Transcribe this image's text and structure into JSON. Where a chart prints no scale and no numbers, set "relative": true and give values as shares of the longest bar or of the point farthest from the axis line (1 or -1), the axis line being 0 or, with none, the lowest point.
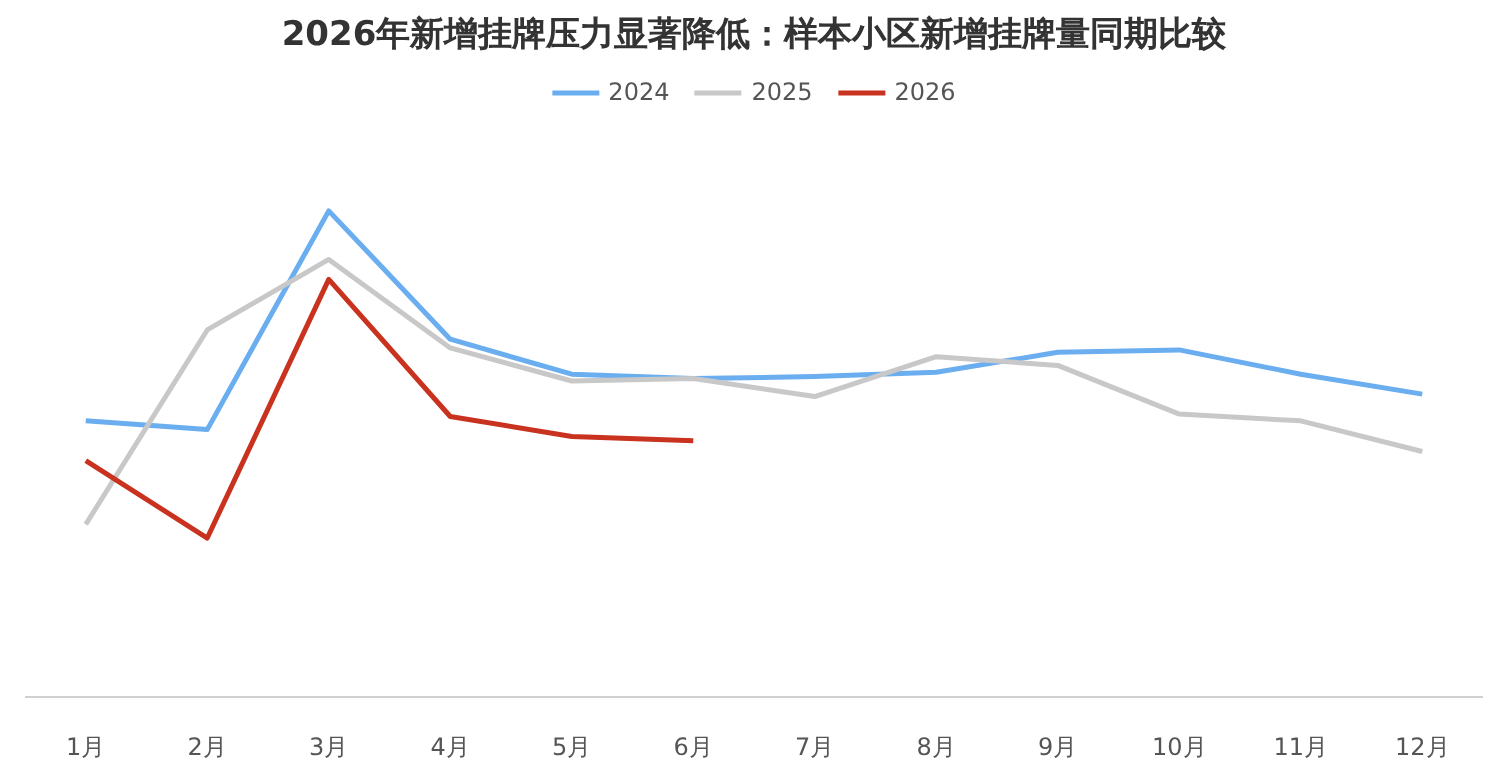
{
  "chart_data": {
    "type": "line",
    "title": "2026年新增挂牌压力显著降低：样本小区新增挂牌量同期比较",
    "relative": true,
    "legend": "top",
    "grid": false,
    "marker": "none",
    "line_style": "solid",
    "categories": [
      "1月",
      "2月",
      "3月",
      "4月",
      "5月",
      "6月",
      "7月",
      "8月",
      "9月",
      "10月",
      "11月",
      "12月"
    ],
    "series": [
      {
        "name": "2024",
        "color": "#6aaef0",
        "values": [
          0.568,
          0.55,
          1,
          0.736,
          0.664,
          0.655,
          0.659,
          0.668,
          0.709,
          0.714,
          0.664,
          0.623
        ]
      },
      {
        "name": "2025",
        "color": "#c8c8c8",
        "values": [
          0.355,
          0.755,
          0.9,
          0.718,
          0.65,
          0.655,
          0.618,
          0.7,
          0.682,
          0.582,
          0.568,
          0.505
        ]
      },
      {
        "name": "2026",
        "color": "#c8321e",
        "values": [
          0.486,
          0.327,
          0.859,
          0.577,
          0.536,
          0.527,
          null,
          null,
          null,
          null,
          null,
          null
        ]
      }
    ]
  }
}
